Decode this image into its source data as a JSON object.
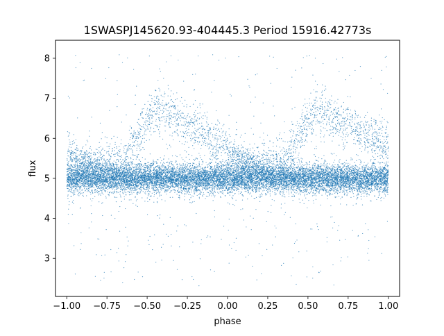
{
  "chart_data": {
    "type": "scatter",
    "title": "1SWASPJ145620.93-404445.3 Period 15916.42773s",
    "xlabel": "phase",
    "ylabel": "flux",
    "xlim": [
      -1.07,
      1.07
    ],
    "ylim": [
      2.05,
      8.45
    ],
    "x_ticks": [
      -1.0,
      -0.75,
      -0.5,
      -0.25,
      0.0,
      0.25,
      0.5,
      0.75,
      1.0
    ],
    "x_tick_labels": [
      "−1.00",
      "−0.75",
      "−0.50",
      "−0.25",
      "0.00",
      "0.25",
      "0.50",
      "0.75",
      "1.00"
    ],
    "y_ticks": [
      3,
      4,
      5,
      6,
      7,
      8
    ],
    "y_tick_labels": [
      "3",
      "4",
      "5",
      "6",
      "7",
      "8"
    ],
    "grid": false,
    "marker_color": "#1f77b4",
    "marker_size": 0.6,
    "point_count": 16000,
    "point_distribution": {
      "phase_range": [
        -1.0,
        1.0
      ],
      "baseline_flux": 5.0,
      "baseline_spread": 0.17,
      "secondary_band": {
        "flux_at_phase_-1": 5.65,
        "flux_at_phase_0.3": 5.0
      },
      "bright_hump": {
        "center_phase": -0.45,
        "peak_flux": 6.75,
        "decline_flux_at_phase_0": 5.8
      },
      "period_in_phase": 1.0,
      "outlier_flux_range": [
        2.3,
        8.1
      ]
    }
  }
}
